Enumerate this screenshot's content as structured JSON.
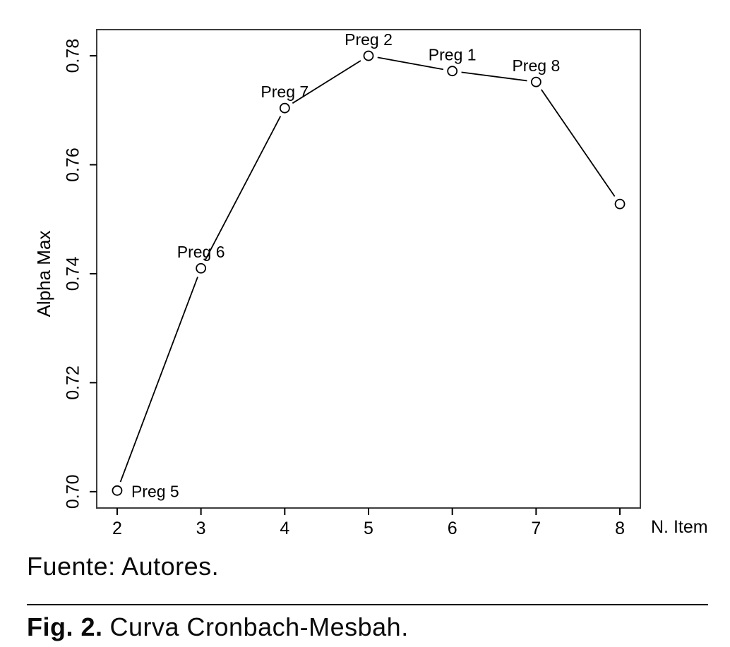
{
  "figure": {
    "source_note": "Fuente: Autores.",
    "caption_label": "Fig. 2.",
    "caption_text": "Curva Cronbach-Mesbah."
  },
  "chart_data": {
    "type": "line",
    "title": "",
    "xlabel": "N. Item",
    "ylabel": "Alpha Max",
    "x": [
      2,
      3,
      4,
      5,
      6,
      7,
      8
    ],
    "y": [
      0.7002,
      0.741,
      0.7704,
      0.78,
      0.7772,
      0.7752,
      0.7528
    ],
    "point_labels": [
      "Preg 5",
      "Preg 6",
      "Preg 7",
      "Preg 2",
      "Preg 1",
      "Preg 8",
      ""
    ],
    "x_ticks": [
      2,
      3,
      4,
      5,
      6,
      7,
      8
    ],
    "x_tick_labels": [
      "2",
      "3",
      "4",
      "5",
      "6",
      "7",
      "8"
    ],
    "y_ticks": [
      0.7,
      0.72,
      0.74,
      0.76,
      0.78
    ],
    "y_tick_labels": [
      "0.70",
      "0.72",
      "0.74",
      "0.76",
      "0.78"
    ],
    "xlim": [
      1.756,
      8.244
    ],
    "ylim": [
      0.697,
      0.7848
    ],
    "marker": "open-circle",
    "grid": false,
    "legend": false,
    "line_color": "#000000",
    "box_color": "#3d3d3d",
    "text_color": "#000000"
  }
}
